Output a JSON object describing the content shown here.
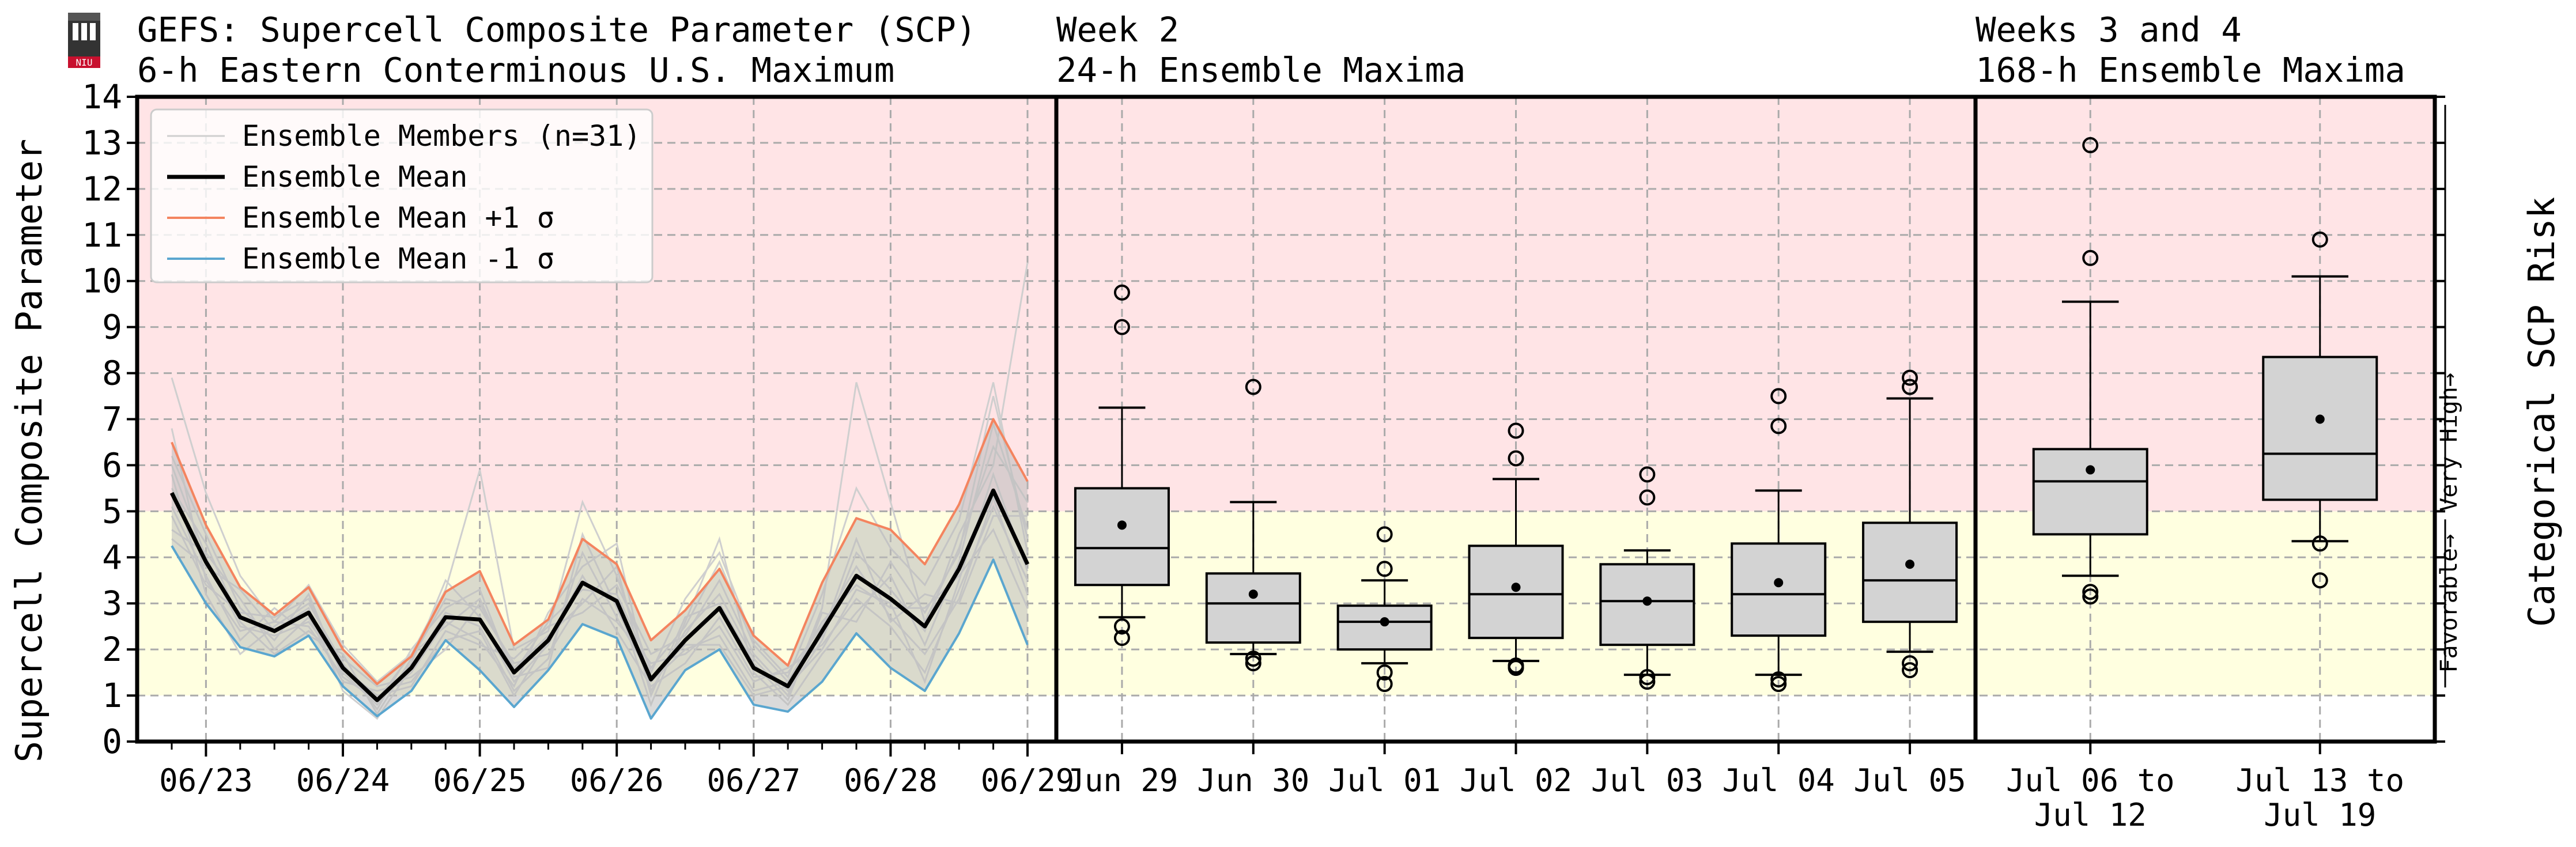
{
  "header": {
    "title_left_1": "GEFS: Supercell Composite Parameter (SCP)",
    "title_left_2": "6-h Eastern Conterminous U.S. Maximum",
    "title_mid_1": "Week 2",
    "title_mid_2": "24-h Ensemble Maxima",
    "title_right_1": "Weeks 3 and 4",
    "title_right_2": "168-h Ensemble Maxima",
    "logo_text": "NIU"
  },
  "chart_data": {
    "type": "line",
    "ylabel": "Supercell Composite Parameter",
    "ylabel_right": "Categorical SCP Risk",
    "ylim": [
      0,
      14
    ],
    "y_ticks": [
      "0",
      "1",
      "2",
      "3",
      "4",
      "5",
      "6",
      "7",
      "8",
      "9",
      "10",
      "11",
      "12",
      "13",
      "14"
    ],
    "grid": true,
    "legend_position": "top-left",
    "risk_bands": [
      {
        "label": "Favorable→",
        "from": 1,
        "to": 5,
        "color": "#ffffe0"
      },
      {
        "label": "Very High→",
        "from": 5,
        "to": 14,
        "color": "#ffe4e6"
      }
    ],
    "colors": {
      "mean": "#000000",
      "plus": "#f4845f",
      "minus": "#5aa6cf",
      "member": "#cfcfcf",
      "spread": "#bbbbbb",
      "high_band": "#ffe4e6",
      "fav_band": "#ffffe0",
      "box_fill": "#d3d3d3"
    },
    "timeseries": {
      "x_ticks": [
        "06/23",
        "06/24",
        "06/25",
        "06/26",
        "06/27",
        "06/28",
        "06/29"
      ],
      "x_tick_positions": [
        1,
        5,
        9,
        13,
        17,
        21,
        25
      ],
      "legend": [
        "Ensemble Members (n=31)",
        "Ensemble Mean",
        "Ensemble Mean +1 σ",
        "Ensemble Mean -1 σ"
      ],
      "series": [
        {
          "name": "Ensemble Mean",
          "values": [
            5.4,
            3.9,
            2.7,
            2.4,
            2.8,
            1.6,
            0.9,
            1.6,
            2.7,
            2.65,
            1.5,
            2.2,
            3.45,
            3.05,
            1.35,
            2.2,
            2.9,
            1.6,
            1.2,
            2.4,
            3.6,
            3.1,
            2.5,
            3.75,
            5.45,
            3.85
          ]
        },
        {
          "name": "Ensemble Mean +1 σ",
          "values": [
            6.5,
            4.7,
            3.35,
            2.75,
            3.35,
            2.0,
            1.25,
            1.85,
            3.25,
            3.7,
            2.1,
            2.65,
            4.4,
            3.85,
            2.2,
            2.85,
            3.75,
            2.3,
            1.65,
            3.45,
            4.85,
            4.6,
            3.85,
            5.15,
            7.0,
            5.65
          ]
        },
        {
          "name": "Ensemble Mean -1 σ",
          "values": [
            4.25,
            3.0,
            2.05,
            1.85,
            2.3,
            1.2,
            0.55,
            1.1,
            2.2,
            1.55,
            0.75,
            1.55,
            2.55,
            2.25,
            0.5,
            1.55,
            2.0,
            0.8,
            0.65,
            1.3,
            2.35,
            1.6,
            1.1,
            2.35,
            3.95,
            2.1
          ]
        }
      ],
      "members": [
        [
          7.9,
          5.4,
          3.6,
          2.6,
          3.4,
          2.1,
          1.3,
          1.9,
          3.3,
          5.9,
          2.0,
          2.4,
          5.2,
          3.6,
          1.5,
          3.1,
          4.1,
          2.2,
          1.4,
          3.2,
          5.5,
          4.2,
          3.4,
          4.8,
          7.8,
          4.1
        ],
        [
          6.2,
          4.5,
          2.9,
          2.2,
          3.2,
          1.4,
          0.9,
          1.5,
          2.6,
          2.2,
          1.2,
          2.8,
          3.8,
          4.3,
          1.1,
          2.4,
          3.2,
          1.8,
          1.0,
          2.9,
          7.8,
          5.2,
          2.6,
          4.2,
          6.4,
          5.2
        ],
        [
          5.1,
          3.6,
          2.2,
          2.9,
          2.3,
          1.9,
          0.6,
          1.8,
          3.1,
          2.9,
          1.7,
          1.9,
          3.1,
          2.6,
          1.7,
          1.9,
          2.5,
          1.3,
          1.6,
          2.1,
          3.1,
          2.5,
          1.5,
          3.3,
          5.1,
          3.5
        ],
        [
          4.6,
          4.1,
          3.1,
          2.0,
          2.7,
          1.3,
          1.1,
          1.3,
          2.2,
          2.4,
          1.0,
          2.2,
          3.4,
          3.1,
          0.8,
          2.6,
          4.4,
          1.5,
          0.8,
          1.9,
          2.8,
          3.6,
          2.1,
          3.9,
          6.9,
          4.6
        ],
        [
          5.8,
          3.2,
          1.9,
          2.5,
          3.0,
          1.7,
          0.7,
          2.0,
          2.9,
          3.3,
          1.4,
          1.6,
          4.5,
          2.9,
          1.3,
          2.0,
          2.3,
          1.1,
          1.3,
          2.6,
          3.4,
          2.9,
          2.9,
          3.6,
          4.6,
          2.9
        ],
        [
          6.0,
          4.0,
          2.5,
          2.3,
          2.6,
          1.6,
          1.0,
          1.2,
          2.4,
          2.1,
          1.8,
          2.5,
          2.8,
          3.4,
          1.9,
          2.3,
          3.5,
          1.9,
          1.1,
          2.2,
          4.1,
          3.3,
          2.4,
          4.5,
          6.0,
          10.4
        ],
        [
          4.9,
          3.4,
          2.8,
          2.7,
          3.1,
          1.5,
          0.8,
          1.7,
          3.5,
          2.7,
          1.3,
          2.1,
          3.6,
          2.4,
          1.2,
          1.7,
          2.7,
          1.4,
          1.5,
          2.5,
          3.8,
          2.7,
          1.9,
          3.1,
          5.3,
          3.2
        ],
        [
          5.5,
          4.3,
          2.6,
          1.9,
          2.4,
          1.8,
          1.2,
          1.4,
          2.0,
          3.0,
          1.6,
          2.3,
          3.0,
          3.8,
          1.0,
          2.7,
          3.0,
          1.7,
          0.9,
          2.8,
          2.6,
          3.9,
          2.8,
          4.1,
          7.5,
          4.4
        ],
        [
          4.4,
          3.8,
          3.3,
          2.4,
          2.9,
          1.1,
          0.5,
          1.6,
          2.8,
          2.5,
          1.1,
          1.8,
          4.1,
          2.7,
          1.4,
          2.1,
          2.1,
          1.0,
          1.2,
          2.0,
          3.3,
          3.0,
          1.3,
          3.5,
          5.8,
          3.7
        ],
        [
          6.8,
          3.5,
          2.4,
          2.6,
          2.5,
          1.4,
          0.9,
          1.9,
          2.5,
          3.1,
          1.5,
          2.6,
          3.3,
          3.2,
          1.6,
          2.5,
          3.9,
          2.1,
          1.3,
          2.3,
          4.4,
          2.6,
          3.2,
          3.0,
          4.9,
          4.9
        ]
      ]
    },
    "week2": {
      "categories": [
        "Jun 29",
        "Jun 30",
        "Jul 01",
        "Jul 02",
        "Jul 03",
        "Jul 04",
        "Jul 05"
      ],
      "boxes": [
        {
          "q1": 3.4,
          "median": 4.2,
          "q3": 5.5,
          "lo": 2.7,
          "hi": 7.25,
          "mean": 4.7,
          "outliers": [
            2.25,
            2.5,
            9.0,
            9.75
          ]
        },
        {
          "q1": 2.15,
          "median": 3.0,
          "q3": 3.65,
          "lo": 1.9,
          "hi": 5.2,
          "mean": 3.2,
          "outliers": [
            1.7,
            1.8,
            7.7
          ]
        },
        {
          "q1": 2.0,
          "median": 2.6,
          "q3": 2.95,
          "lo": 1.7,
          "hi": 3.5,
          "mean": 2.6,
          "outliers": [
            1.25,
            1.5,
            3.75,
            4.5
          ]
        },
        {
          "q1": 2.25,
          "median": 3.2,
          "q3": 4.25,
          "lo": 1.75,
          "hi": 5.7,
          "mean": 3.35,
          "outliers": [
            1.6,
            1.65,
            6.15,
            6.75
          ]
        },
        {
          "q1": 2.1,
          "median": 3.05,
          "q3": 3.85,
          "lo": 1.45,
          "hi": 4.15,
          "mean": 3.05,
          "outliers": [
            1.3,
            1.4,
            5.3,
            5.8
          ]
        },
        {
          "q1": 2.3,
          "median": 3.2,
          "q3": 4.3,
          "lo": 1.45,
          "hi": 5.45,
          "mean": 3.45,
          "outliers": [
            1.25,
            1.35,
            6.85,
            7.5
          ]
        },
        {
          "q1": 2.6,
          "median": 3.5,
          "q3": 4.75,
          "lo": 1.95,
          "hi": 7.45,
          "mean": 3.85,
          "outliers": [
            1.55,
            1.7,
            7.7,
            7.9
          ]
        }
      ]
    },
    "weeks34": {
      "categories": [
        [
          "Jul 06 to",
          "Jul 12"
        ],
        [
          "Jul 13 to",
          "Jul 19"
        ]
      ],
      "boxes": [
        {
          "q1": 4.5,
          "median": 5.65,
          "q3": 6.35,
          "lo": 3.6,
          "hi": 9.55,
          "mean": 5.9,
          "outliers": [
            3.15,
            3.25,
            10.5,
            12.95
          ]
        },
        {
          "q1": 5.25,
          "median": 6.25,
          "q3": 8.35,
          "lo": 4.35,
          "hi": 10.1,
          "mean": 7.0,
          "outliers": [
            3.5,
            4.3,
            10.9
          ]
        }
      ]
    }
  }
}
